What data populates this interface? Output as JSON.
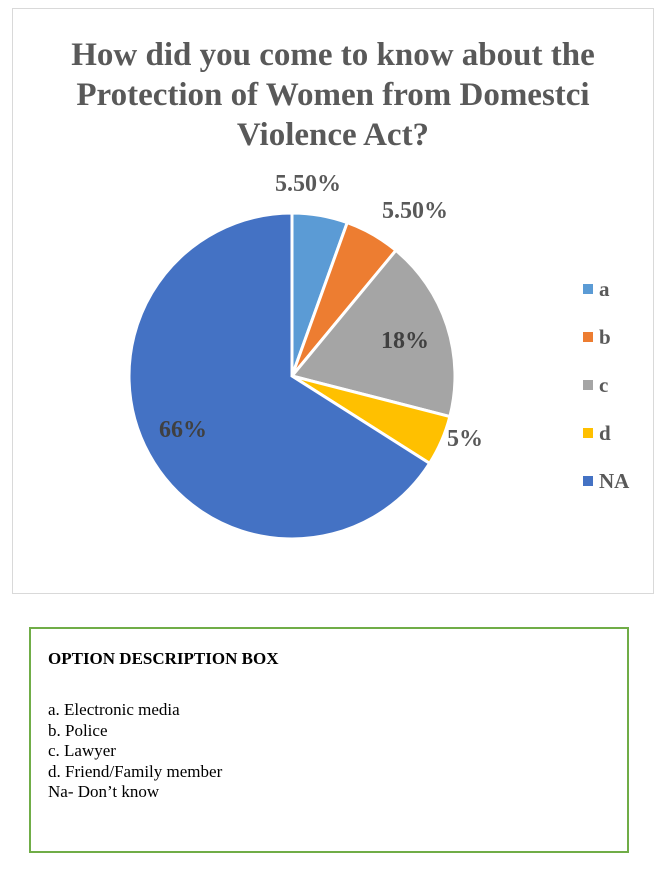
{
  "chart_data": {
    "type": "pie",
    "title": "How did you come to know about the Protection of Women from Domestci Violence Act?",
    "categories": [
      "a",
      "b",
      "c",
      "d",
      "NA"
    ],
    "values": [
      5.5,
      5.5,
      18,
      5,
      66
    ],
    "data_labels": [
      "5.50%",
      "5.50%",
      "18%",
      "5%",
      "66%"
    ],
    "colors": [
      "#5b9bd5",
      "#ed7d31",
      "#a5a5a5",
      "#ffc000",
      "#4472c4"
    ],
    "legend": {
      "position": "right"
    }
  },
  "description_box": {
    "heading": "OPTION DESCRIPTION BOX",
    "items": [
      "a. Electronic media",
      "b. Police",
      "c. Lawyer",
      "d. Friend/Family member",
      "Na- Don’t know"
    ]
  }
}
